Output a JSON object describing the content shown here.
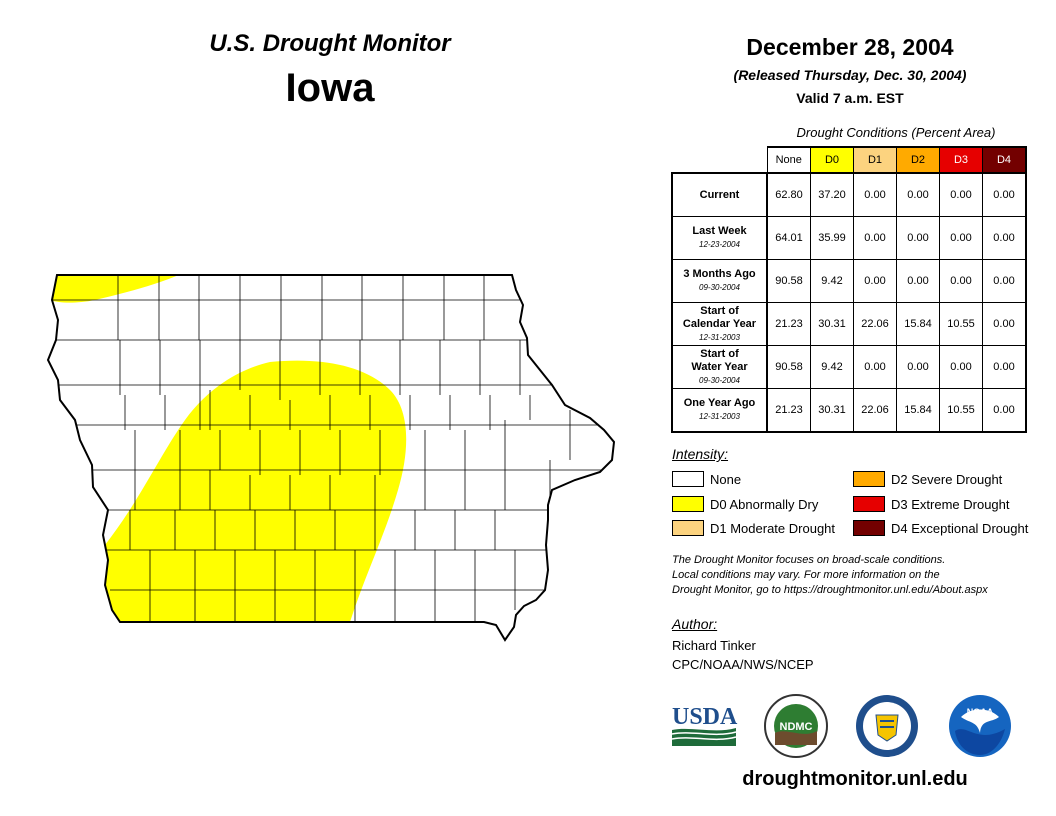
{
  "header": {
    "title": "U.S. Drought Monitor",
    "state": "Iowa",
    "date": "December 28, 2004",
    "released": "(Released Thursday, Dec. 30, 2004)",
    "valid": "Valid 7 a.m. EST"
  },
  "table": {
    "caption": "Drought Conditions (Percent Area)",
    "columns": [
      {
        "label": "None",
        "color": "#ffffff",
        "text_color": "#000000"
      },
      {
        "label": "D0",
        "color": "#ffff00",
        "text_color": "#000000"
      },
      {
        "label": "D1",
        "color": "#fcd37f",
        "text_color": "#000000"
      },
      {
        "label": "D2",
        "color": "#ffaa00",
        "text_color": "#000000"
      },
      {
        "label": "D3",
        "color": "#e60000",
        "text_color": "#ffffff"
      },
      {
        "label": "D4",
        "color": "#730000",
        "text_color": "#ffffff"
      }
    ],
    "rows": [
      {
        "label": "Current",
        "sublabel": "",
        "values": [
          "62.80",
          "37.20",
          "0.00",
          "0.00",
          "0.00",
          "0.00"
        ]
      },
      {
        "label": "Last Week",
        "sublabel": "12-23-2004",
        "values": [
          "64.01",
          "35.99",
          "0.00",
          "0.00",
          "0.00",
          "0.00"
        ]
      },
      {
        "label": "3 Months Ago",
        "sublabel": "09-30-2004",
        "values": [
          "90.58",
          "9.42",
          "0.00",
          "0.00",
          "0.00",
          "0.00"
        ]
      },
      {
        "label": "Start of Calendar Year",
        "sublabel": "12-31-2003",
        "values": [
          "21.23",
          "30.31",
          "22.06",
          "15.84",
          "10.55",
          "0.00"
        ]
      },
      {
        "label": "Start of Water Year",
        "sublabel": "09-30-2004",
        "values": [
          "90.58",
          "9.42",
          "0.00",
          "0.00",
          "0.00",
          "0.00"
        ]
      },
      {
        "label": "One Year Ago",
        "sublabel": "12-31-2003",
        "values": [
          "21.23",
          "30.31",
          "22.06",
          "15.84",
          "10.55",
          "0.00"
        ]
      }
    ]
  },
  "legend": {
    "title": "Intensity:",
    "items": [
      {
        "label": "None",
        "color": "#ffffff"
      },
      {
        "label": "D0 Abnormally Dry",
        "color": "#ffff00"
      },
      {
        "label": "D1 Moderate Drought",
        "color": "#fcd37f"
      },
      {
        "label": "D2 Severe Drought",
        "color": "#ffaa00"
      },
      {
        "label": "D3 Extreme Drought",
        "color": "#e60000"
      },
      {
        "label": "D4 Exceptional Drought",
        "color": "#730000"
      }
    ]
  },
  "disclaimer": [
    "The Drought Monitor focuses on broad-scale conditions.",
    "Local conditions may vary. For more information on the",
    "Drought Monitor, go to https://droughtmonitor.unl.edu/About.aspx"
  ],
  "author": {
    "title": "Author:",
    "name": "Richard Tinker",
    "org": "CPC/NOAA/NWS/NCEP"
  },
  "logos": {
    "usda": "USDA",
    "ndmc": "NDMC",
    "noaa": "NOAA",
    "commerce": "commerce-seal-icon"
  },
  "website": "droughtmonitor.unl.edu",
  "map": {
    "drought_areas": [
      {
        "category": "D0",
        "region": "northwest corner strip"
      },
      {
        "category": "D0",
        "region": "central to southwest"
      }
    ]
  }
}
